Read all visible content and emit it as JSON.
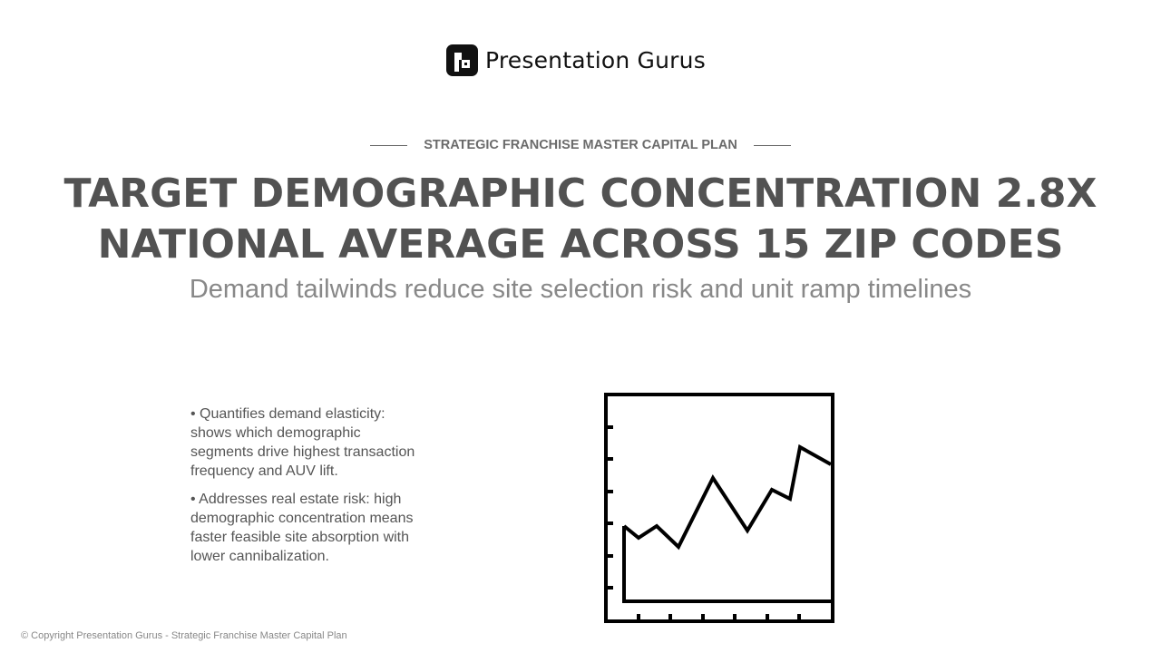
{
  "brand": {
    "name": "Presentation Gurus",
    "mark_color": "#111111"
  },
  "eyebrow": "STRATEGIC FRANCHISE MASTER CAPITAL PLAN",
  "headline": {
    "line1": "TARGET DEMOGRAPHIC CONCENTRATION 2.8X",
    "line2": "NATIONAL AVERAGE ACROSS 15 ZIP CODES"
  },
  "subheadline": "Demand tailwinds reduce site selection risk and unit ramp timelines",
  "bullets": [
    "• Quantifies demand elasticity: shows which demographic segments drive highest transaction frequency and AUV lift.",
    "• Addresses real estate risk: high demographic concentration means faster feasible site absorption with lower cannibalization."
  ],
  "illustration": {
    "icon": "line-chart-icon"
  },
  "footer": "© Copyright Presentation Gurus - Strategic Franchise Master Capital Plan",
  "colors": {
    "headline": "#525252",
    "subheadline": "#888888",
    "body": "#555555"
  }
}
